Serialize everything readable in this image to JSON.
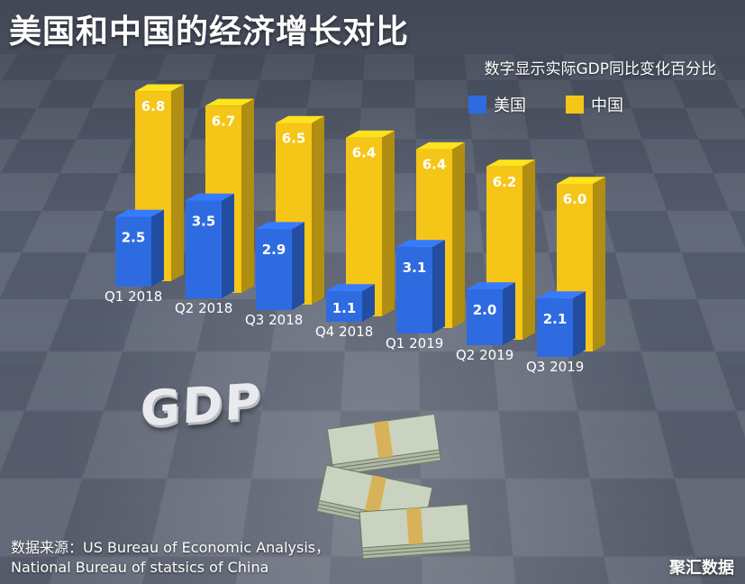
{
  "chart_data": {
    "type": "bar",
    "title": "美国和中国的经济增长对比",
    "subtitle": "数字显示实际GDP同比变化百分比",
    "categories": [
      "Q1 2018",
      "Q2 2018",
      "Q3 2018",
      "Q4 2018",
      "Q1 2019",
      "Q2 2019",
      "Q3 2019"
    ],
    "series": [
      {
        "name": "美国",
        "color": "#2f6be0",
        "values": [
          2.5,
          3.5,
          2.9,
          1.1,
          3.1,
          2.0,
          2.1
        ]
      },
      {
        "name": "中国",
        "color": "#f5c518",
        "values": [
          6.8,
          6.7,
          6.5,
          6.4,
          6.4,
          6.2,
          6.0
        ]
      }
    ],
    "ylim": [
      0,
      7
    ],
    "legend_position": "top-right",
    "grid": false
  },
  "decor": {
    "gdp_text": "GDP"
  },
  "source": {
    "line1": "数据来源：US Bureau of Economic Analysis，",
    "line2": "National Bureau of statsics of China"
  },
  "watermark": "聚汇数据"
}
